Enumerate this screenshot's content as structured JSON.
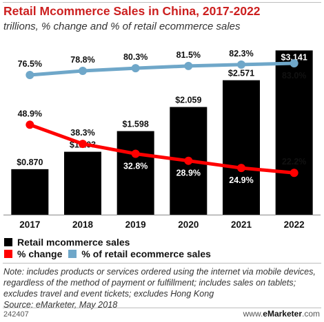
{
  "header": {
    "title": "Retail Mcommerce Sales in China, 2017-2022",
    "subtitle": "trillions, % change and % of retail ecommerce sales"
  },
  "chart_data": {
    "type": "bar",
    "categories": [
      "2017",
      "2018",
      "2019",
      "2020",
      "2021",
      "2022"
    ],
    "series": [
      {
        "name": "Retail mcommerce sales",
        "type": "bar",
        "color": "#000000",
        "values": [
          0.87,
          1.203,
          1.598,
          2.059,
          2.571,
          3.141
        ],
        "labels": [
          "$0.870",
          "$1.203",
          "$1.598",
          "$2.059",
          "$2.571",
          "$3.141"
        ]
      },
      {
        "name": "% change",
        "type": "line",
        "color": "#ff0000",
        "values": [
          48.9,
          38.3,
          32.8,
          28.9,
          24.9,
          22.2
        ],
        "labels": [
          "48.9%",
          "38.3%",
          "32.8%",
          "28.9%",
          "24.9%",
          "22.2%"
        ]
      },
      {
        "name": "% of retail ecommerce sales",
        "type": "line",
        "color": "#6fa7c9",
        "values": [
          76.5,
          78.8,
          80.3,
          81.5,
          82.3,
          83.0
        ],
        "labels": [
          "76.5%",
          "78.8%",
          "80.3%",
          "81.5%",
          "82.3%",
          "83.0%"
        ]
      }
    ]
  },
  "legend": {
    "bar_label": "Retail mcommerce sales",
    "change_label": "% change",
    "share_label": "% of retail ecommerce sales"
  },
  "note": "Note: includes products or services ordered using the internet via mobile devices, regardless of the method of payment or fulfillment; includes sales on tablets; excludes travel and event tickets; excludes Hong Kong",
  "source": "Source: eMarketer, May 2018",
  "footer": {
    "chart_id": "242407",
    "site_prefix": "www.",
    "site_brand": "eMarketer",
    "site_suffix": ".com"
  }
}
